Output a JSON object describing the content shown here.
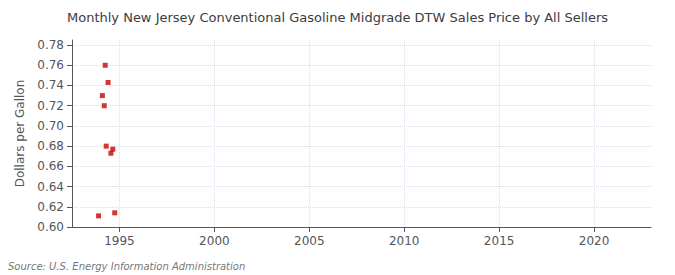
{
  "chart_data": {
    "type": "scatter",
    "title": "Monthly New Jersey Conventional Gasoline Midgrade DTW Sales Price by All Sellers",
    "ylabel": "Dollars per Gallon",
    "annotation": "Source: U.S. Energy Information Administration",
    "x": [
      1993.9,
      1994.25,
      1994.4,
      1994.55,
      1994.65,
      1994.1,
      1994.2,
      1994.3,
      1994.75
    ],
    "values": [
      0.611,
      0.76,
      0.743,
      0.673,
      0.677,
      0.73,
      0.72,
      0.68,
      0.614
    ],
    "color": "#cc0000",
    "marker": "square",
    "xlim": [
      1992.5,
      2023
    ],
    "ylim": [
      0.6,
      0.785
    ],
    "xticks": [
      1995,
      2000,
      2005,
      2010,
      2015,
      2020
    ],
    "yticks": [
      {
        "value": 0.6,
        "label": "0.60"
      },
      0.62,
      0.64,
      0.66,
      0.68,
      {
        "value": 0.7,
        "label": "0.70"
      },
      0.72,
      0.74,
      0.76,
      0.78
    ],
    "grid": true
  }
}
